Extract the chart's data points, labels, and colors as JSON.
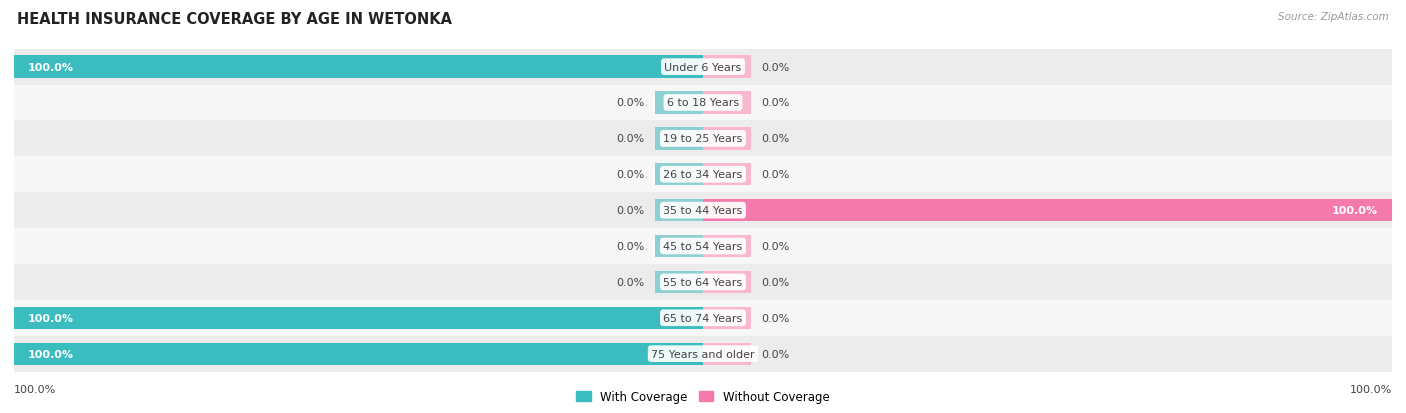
{
  "title": "HEALTH INSURANCE COVERAGE BY AGE IN WETONKA",
  "source": "Source: ZipAtlas.com",
  "categories": [
    "Under 6 Years",
    "6 to 18 Years",
    "19 to 25 Years",
    "26 to 34 Years",
    "35 to 44 Years",
    "45 to 54 Years",
    "55 to 64 Years",
    "65 to 74 Years",
    "75 Years and older"
  ],
  "with_coverage": [
    100.0,
    0.0,
    0.0,
    0.0,
    0.0,
    0.0,
    0.0,
    100.0,
    100.0
  ],
  "without_coverage": [
    0.0,
    0.0,
    0.0,
    0.0,
    100.0,
    0.0,
    0.0,
    0.0,
    0.0
  ],
  "color_with": "#3bbcbe",
  "color_without": "#f47aab",
  "color_with_small": "#8ecfd1",
  "color_without_small": "#f9b8d0",
  "row_colors": [
    "#ececec",
    "#f7f7f7",
    "#ececec",
    "#f7f7f7",
    "#ececec",
    "#f7f7f7",
    "#ececec",
    "#f7f7f7",
    "#ececec"
  ],
  "label_color": "#444444",
  "title_color": "#222222",
  "source_color": "#999999",
  "legend_label_with": "With Coverage",
  "legend_label_without": "Without Coverage",
  "figsize": [
    14.06,
    4.14
  ],
  "dpi": 100,
  "stub_size": 7,
  "max_val": 100
}
